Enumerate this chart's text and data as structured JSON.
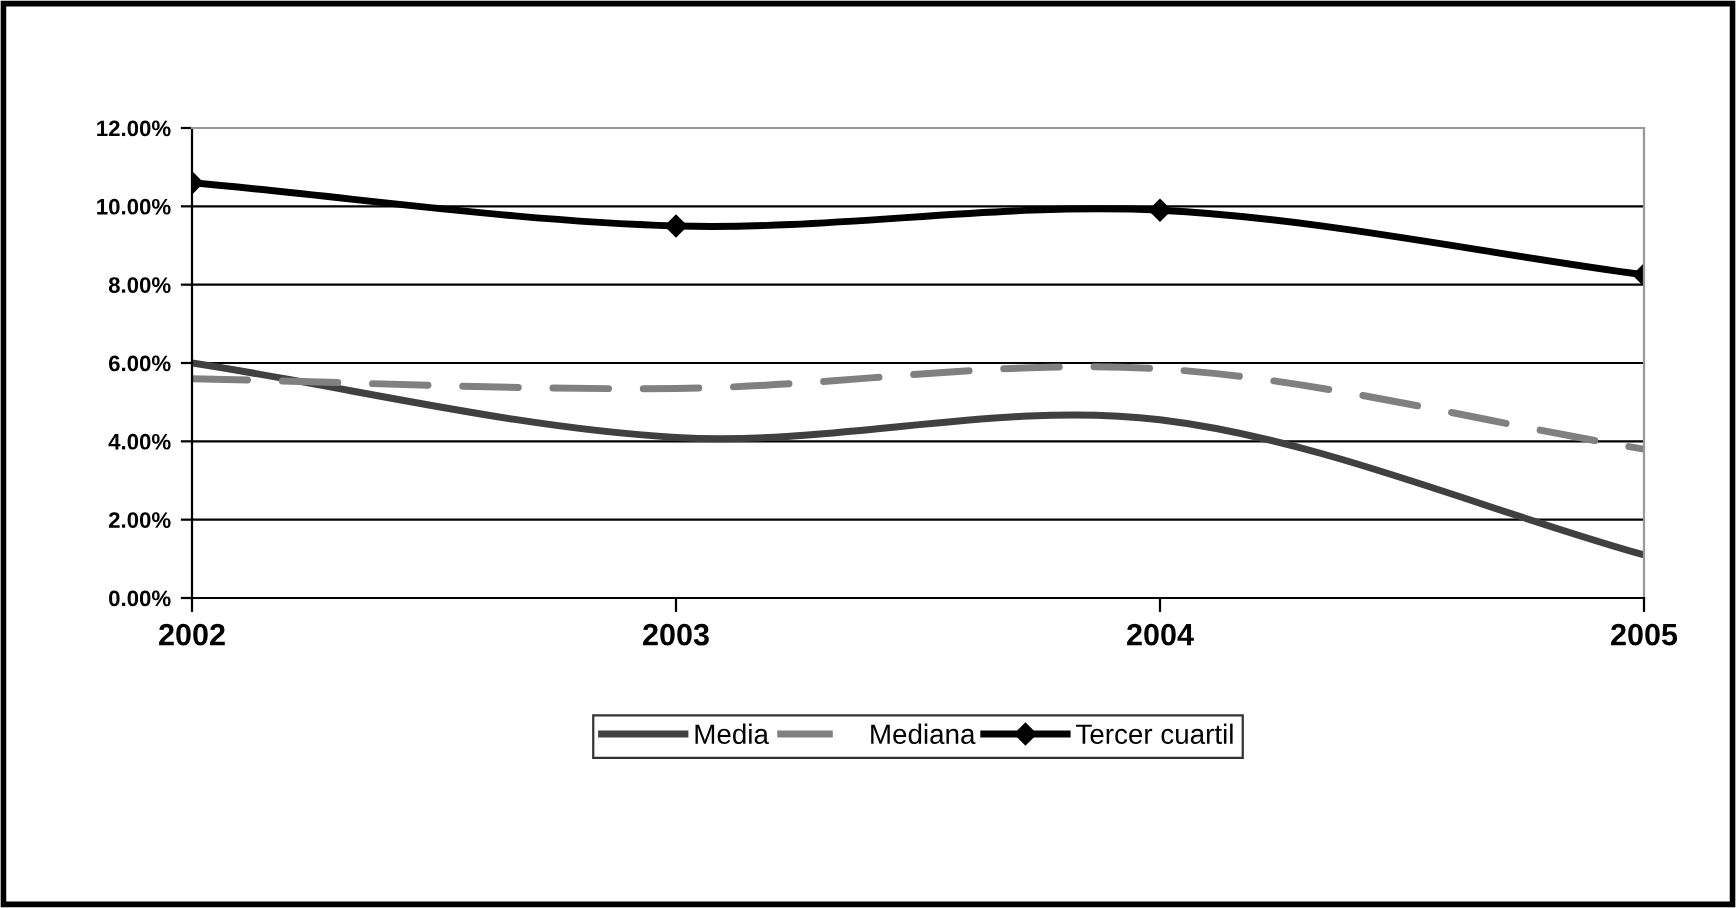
{
  "chart_data": {
    "type": "line",
    "categories": [
      "2002",
      "2003",
      "2004",
      "2005"
    ],
    "series": [
      {
        "name": "Media",
        "color": "#404040",
        "values": [
          6.0,
          4.1,
          4.55,
          1.1
        ],
        "line_style": "solid",
        "marker": "none"
      },
      {
        "name": "Mediana",
        "color": "#808080",
        "values": [
          5.6,
          5.35,
          5.85,
          3.8
        ],
        "line_style": "dashed",
        "marker": "none"
      },
      {
        "name": "Tercer cuartil",
        "color": "#000000",
        "values": [
          10.6,
          9.5,
          9.9,
          8.25
        ],
        "line_style": "solid",
        "marker": "diamond"
      }
    ],
    "ylim": [
      0,
      12
    ],
    "yticks": [
      {
        "value": 0,
        "label": "0.00%"
      },
      {
        "value": 2,
        "label": "2.00%"
      },
      {
        "value": 4,
        "label": "4.00%"
      },
      {
        "value": 6,
        "label": "6.00%"
      },
      {
        "value": 8,
        "label": "8.00%"
      },
      {
        "value": 10,
        "label": "10.00%"
      },
      {
        "value": 12,
        "label": "12.00%"
      }
    ],
    "grid": "y",
    "legend": "bottom"
  }
}
